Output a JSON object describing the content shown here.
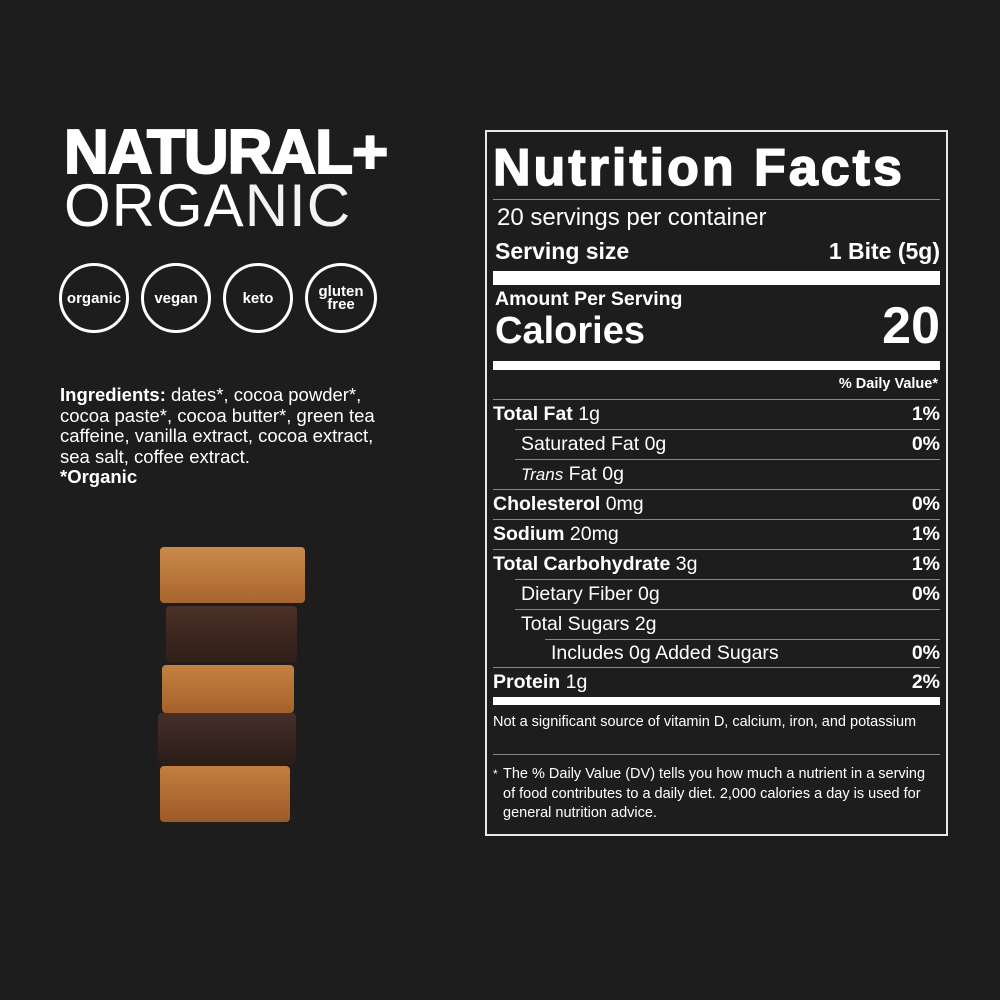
{
  "headline": {
    "line1": "NATURAL+",
    "line2_bold": "ORGA",
    "line2_thin": "NIC"
  },
  "badges": [
    {
      "label": "organic",
      "icon": "organic-badge"
    },
    {
      "label": "vegan",
      "icon": "vegan-badge"
    },
    {
      "label": "keto",
      "icon": "keto-badge"
    },
    {
      "label": "gluten free",
      "icon": "gluten-free-badge"
    }
  ],
  "ingredients": {
    "label": "Ingredients:",
    "text": " dates*, cocoa powder*, cocoa paste*, cocoa butter*, green tea caffeine, vanilla extract, cocoa extract, sea salt, coffee extract.",
    "note": "*Organic"
  },
  "nutrition": {
    "title": "Nutrition Facts",
    "servings": "20 servings per container",
    "serving_size_label": "Serving size",
    "serving_size": "1 Bite (5g)",
    "amount_label": "Amount Per Serving",
    "calories_label": "Calories",
    "calories": "20",
    "dv_header": "% Daily Value*",
    "rows": [
      {
        "name": "Total Fat",
        "amount": "1g",
        "dv": "1%",
        "bold": true,
        "indent": 0
      },
      {
        "name": "Saturated Fat",
        "amount": "0g",
        "dv": "0%",
        "bold": false,
        "indent": 1
      },
      {
        "name": "Trans",
        "name2": "Fat",
        "amount": "0g",
        "dv": "",
        "bold": false,
        "indent": 1
      },
      {
        "name": "Cholesterol",
        "amount": "0mg",
        "dv": "0%",
        "bold": true,
        "indent": 0
      },
      {
        "name": "Sodium",
        "amount": "20mg",
        "dv": "1%",
        "bold": true,
        "indent": 0
      },
      {
        "name": "Total Carbohydrate",
        "amount": "3g",
        "dv": "1%",
        "bold": true,
        "indent": 0
      },
      {
        "name": "Dietary Fiber",
        "amount": "0g",
        "dv": "0%",
        "bold": false,
        "indent": 1
      },
      {
        "name": "Total Sugars",
        "amount": "2g",
        "dv": "",
        "bold": false,
        "indent": 1
      },
      {
        "name": "Includes 0g Added Sugars",
        "amount": "",
        "dv": "0%",
        "bold": false,
        "indent": 2
      },
      {
        "name": "Protein",
        "amount": "1g",
        "dv": "2%",
        "bold": true,
        "indent": 0
      }
    ],
    "vitamins_note": "Not a significant source of vitamin D, calcium, iron, and potassium",
    "footnote_star": "*",
    "footnote": "The % Daily Value (DV) tells you how much a nutrient in a serving of food contributes to a daily diet. 2,000 calories a day is used for general nutrition advice."
  },
  "colors": {
    "background": "#1d1d1d",
    "text": "#ffffff",
    "bite_light": "#b8733a",
    "bite_dark": "#3e2820"
  }
}
